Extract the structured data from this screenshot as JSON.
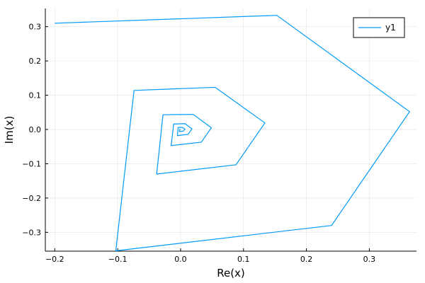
{
  "chart_data": {
    "type": "line",
    "title": "",
    "xlabel": "Re(x)",
    "ylabel": "Im(x)",
    "xlim": [
      -0.215,
      0.375
    ],
    "ylim": [
      -0.355,
      0.353
    ],
    "xticks": [
      -0.2,
      -0.1,
      0.0,
      0.1,
      0.2,
      0.3
    ],
    "xtick_labels": [
      "−0.2",
      "−0.1",
      "0.0",
      "0.1",
      "0.2",
      "0.3"
    ],
    "yticks": [
      -0.3,
      -0.2,
      -0.1,
      0.0,
      0.1,
      0.2,
      0.3
    ],
    "ytick_labels": [
      "−0.3",
      "−0.2",
      "−0.1",
      "0.0",
      "0.1",
      "0.2",
      "0.3"
    ],
    "grid": true,
    "legend_position": "top-right",
    "series": [
      {
        "name": "y1",
        "color": "#009AFA",
        "points": [
          [
            -0.2,
            0.31
          ],
          [
            0.153,
            0.333
          ],
          [
            0.364,
            0.052
          ],
          [
            0.24,
            -0.28
          ],
          [
            -0.103,
            -0.354
          ],
          [
            -0.074,
            0.114
          ],
          [
            0.055,
            0.123
          ],
          [
            0.134,
            0.019
          ],
          [
            0.088,
            -0.103
          ],
          [
            -0.038,
            -0.13
          ],
          [
            -0.028,
            0.043
          ],
          [
            0.02,
            0.044
          ],
          [
            0.049,
            0.005
          ],
          [
            0.033,
            -0.037
          ],
          [
            -0.015,
            -0.047
          ],
          [
            -0.011,
            0.016
          ],
          [
            0.007,
            0.017
          ],
          [
            0.018,
            0.002
          ],
          [
            0.012,
            -0.014
          ],
          [
            -0.005,
            -0.018
          ],
          [
            -0.004,
            0.006
          ],
          [
            0.003,
            0.006
          ],
          [
            0.007,
            0.001
          ],
          [
            0.004,
            -0.005
          ],
          [
            -0.002,
            -0.006
          ],
          [
            -0.001,
            0.002
          ]
        ]
      }
    ]
  }
}
